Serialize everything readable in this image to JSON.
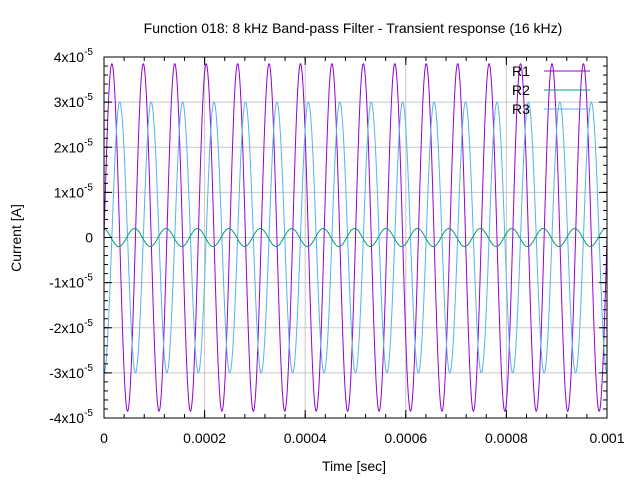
{
  "chart_data": {
    "type": "line",
    "title": "Function 018: 8 kHz Band-pass Filter - Transient response (16 kHz)",
    "xlabel": "Time [sec]",
    "ylabel": "Current [A]",
    "xlim": [
      0,
      0.001
    ],
    "ylim": [
      -4e-05,
      4e-05
    ],
    "x_ticks": [
      {
        "value": 0,
        "label": "0"
      },
      {
        "value": 0.0002,
        "label": "0.0002"
      },
      {
        "value": 0.0004,
        "label": "0.0004"
      },
      {
        "value": 0.0006,
        "label": "0.0006"
      },
      {
        "value": 0.0008,
        "label": "0.0008"
      },
      {
        "value": 0.001,
        "label": "0.001"
      }
    ],
    "y_ticks": [
      {
        "value": 4e-05,
        "mant": "4x10",
        "exp": "-5"
      },
      {
        "value": 3e-05,
        "mant": "3x10",
        "exp": "-5"
      },
      {
        "value": 2e-05,
        "mant": "2x10",
        "exp": "-5"
      },
      {
        "value": 1e-05,
        "mant": "1x10",
        "exp": "-5"
      },
      {
        "value": 0,
        "mant": "0",
        "exp": ""
      },
      {
        "value": -1e-05,
        "mant": "-1x10",
        "exp": "-5"
      },
      {
        "value": -2e-05,
        "mant": "-2x10",
        "exp": "-5"
      },
      {
        "value": -3e-05,
        "mant": "-3x10",
        "exp": "-5"
      },
      {
        "value": -4e-05,
        "mant": "-4x10",
        "exp": "-5"
      }
    ],
    "grid": true,
    "legend_position": "top-right",
    "series": [
      {
        "name": "R1",
        "color": "#9400d3",
        "frequency_hz": 16000,
        "amplitude": 3.85e-05,
        "phase_deg": 0
      },
      {
        "name": "R2",
        "color": "#009e73",
        "frequency_hz": 16000,
        "amplitude": 2e-06,
        "phase_deg": 100
      },
      {
        "name": "R3",
        "color": "#56b4e9",
        "frequency_hz": 16000,
        "amplitude": 3e-05,
        "phase_deg": 270
      }
    ]
  }
}
